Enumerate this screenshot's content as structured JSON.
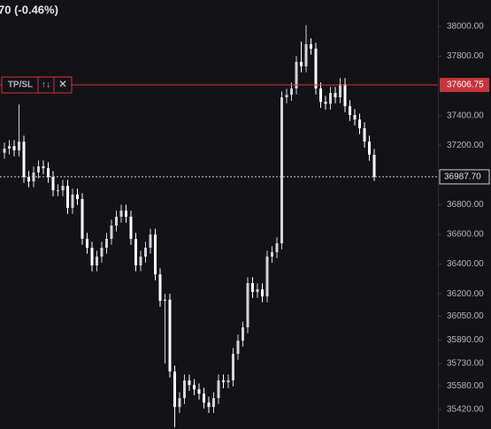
{
  "chart_data": {
    "type": "candlestick",
    "header": "70 (-0.46%)",
    "up_color": "#d1d4dc",
    "down_color": "#ffffff",
    "background": "#131217",
    "ylim": [
      35289,
      38179
    ],
    "yticks": [
      {
        "value": 38000,
        "label": "38000.00"
      },
      {
        "value": 37800,
        "label": "37800.00"
      },
      {
        "value": 37400,
        "label": "37400.00"
      },
      {
        "value": 37200,
        "label": "37200.00"
      },
      {
        "value": 36800,
        "label": "36800.00"
      },
      {
        "value": 36600,
        "label": "36600.00"
      },
      {
        "value": 36400,
        "label": "36400.00"
      },
      {
        "value": 36200,
        "label": "36200.00"
      },
      {
        "value": 36050,
        "label": "36050.00"
      },
      {
        "value": 35890,
        "label": "35890.00"
      },
      {
        "value": 35730,
        "label": "35730.00"
      },
      {
        "value": 35580,
        "label": "35580.00"
      },
      {
        "value": 35420,
        "label": "35420.00"
      }
    ],
    "tpsl": {
      "value": 37606.75,
      "label": "TP/SL",
      "icon_swap": "↑↓",
      "icon_close": "✕",
      "color": "#c9343c"
    },
    "last_price": {
      "value": 36987.7,
      "label": "36987.70"
    },
    "open": [
      37150,
      37178,
      37195,
      37166,
      37225,
      36987,
      36957,
      37017,
      37058,
      37046,
      36987,
      36897,
      36897,
      36927,
      36778,
      36868,
      36838,
      36570,
      36510,
      36391,
      36450,
      36510,
      36570,
      36659,
      36719,
      36760,
      36719,
      36570,
      36391,
      36450,
      36510,
      36599,
      36331,
      36152,
      36160,
      35676,
      35437,
      35497,
      35616,
      35586,
      35556,
      35527,
      35467,
      35437,
      35497,
      35616,
      35604,
      35616,
      35795,
      35884,
      35974,
      36272,
      36212,
      36230,
      36182,
      36450,
      36480,
      36540,
      37523,
      37540,
      37583,
      37762,
      37732,
      37881,
      37851,
      37583,
      37493,
      37480,
      37553,
      37523,
      37613,
      37464,
      37404,
      37374,
      37315,
      37225,
      37136
    ],
    "high": [
      37218,
      37235,
      37235,
      37475,
      37265,
      37027,
      37057,
      37098,
      37098,
      37086,
      37027,
      36937,
      36967,
      36967,
      36908,
      36908,
      36878,
      36610,
      36550,
      36490,
      36550,
      36610,
      36699,
      36759,
      36800,
      36800,
      36759,
      36610,
      36490,
      36550,
      36639,
      36639,
      36371,
      36200,
      36200,
      35716,
      35537,
      35656,
      35656,
      35626,
      35596,
      35567,
      35507,
      35537,
      35656,
      35656,
      35656,
      35835,
      35924,
      36014,
      36312,
      36312,
      36270,
      36270,
      36490,
      36520,
      36580,
      37563,
      37580,
      37623,
      37802,
      37900,
      38010,
      37921,
      37891,
      37623,
      37533,
      37593,
      37593,
      37653,
      37653,
      37504,
      37444,
      37414,
      37355,
      37265,
      37176
    ],
    "low": [
      37110,
      37138,
      37126,
      37126,
      36947,
      36917,
      36917,
      36977,
      37006,
      36947,
      36857,
      36857,
      36857,
      36738,
      36738,
      36798,
      36530,
      36470,
      36351,
      36351,
      36410,
      36470,
      36530,
      36619,
      36679,
      36679,
      36530,
      36351,
      36351,
      36410,
      36470,
      36291,
      36112,
      35730,
      35636,
      35300,
      35397,
      35457,
      35546,
      35516,
      35487,
      35427,
      35397,
      35397,
      35457,
      35564,
      35564,
      35576,
      35755,
      35844,
      35934,
      36172,
      36172,
      36142,
      36142,
      36410,
      36440,
      36500,
      37483,
      37500,
      37543,
      37692,
      37692,
      37811,
      37543,
      37453,
      37440,
      37440,
      37483,
      37483,
      37424,
      37364,
      37334,
      37275,
      37185,
      37096,
      36960
    ],
    "close": [
      37178,
      37195,
      37166,
      37225,
      36987,
      36957,
      37017,
      37058,
      37046,
      36987,
      36897,
      36897,
      36927,
      36778,
      36868,
      36838,
      36570,
      36510,
      36391,
      36450,
      36510,
      36570,
      36659,
      36719,
      36760,
      36719,
      36570,
      36391,
      36450,
      36510,
      36599,
      36331,
      36152,
      36160,
      35676,
      35437,
      35497,
      35616,
      35586,
      35556,
      35527,
      35467,
      35437,
      35497,
      35616,
      35604,
      35616,
      35795,
      35884,
      35974,
      36272,
      36212,
      36230,
      36182,
      36450,
      36480,
      36540,
      37523,
      37540,
      37583,
      37762,
      37732,
      37881,
      37851,
      37583,
      37493,
      37480,
      37553,
      37523,
      37613,
      37464,
      37404,
      37374,
      37315,
      37225,
      37136,
      36987.7
    ]
  }
}
